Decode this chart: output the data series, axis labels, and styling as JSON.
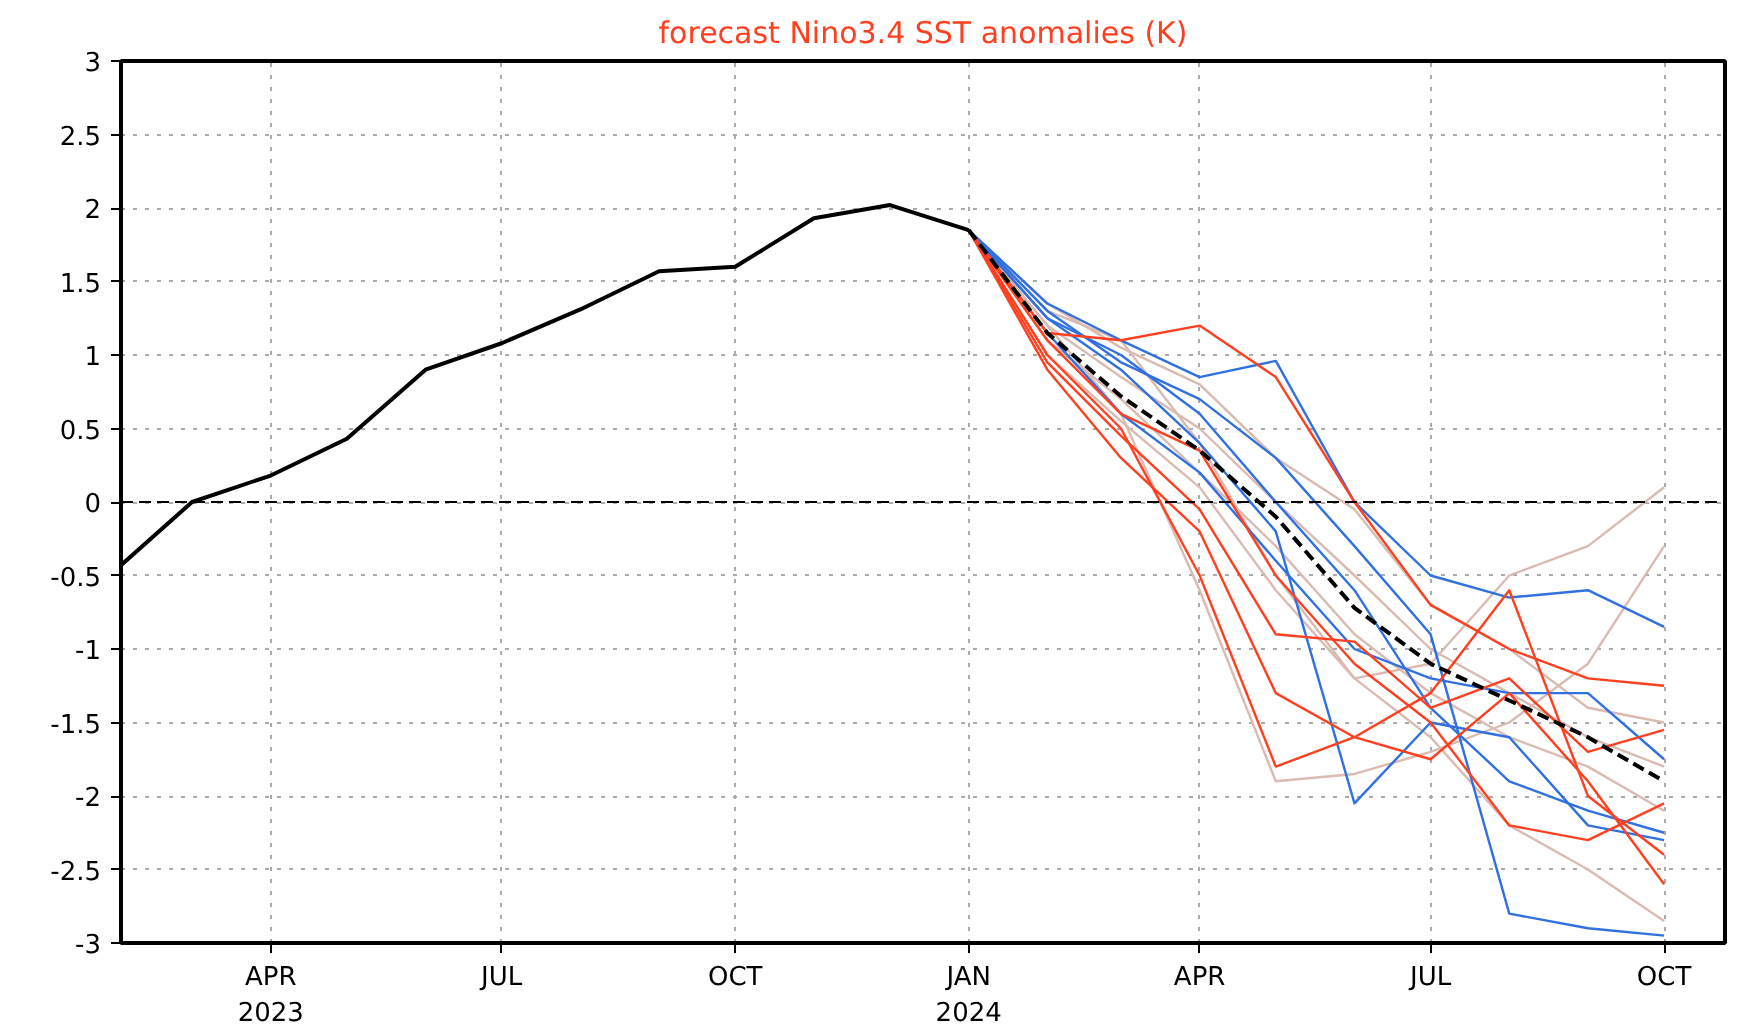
{
  "chart_data": {
    "type": "line",
    "title": "forecast Nino3.4 SST anomalies (K)",
    "xlim": [
      "2023-02-01",
      "2024-10-25"
    ],
    "ylim": [
      -3,
      3
    ],
    "xticks": [
      {
        "value": "2023-04",
        "label": "APR\n2023"
      },
      {
        "value": "2023-07",
        "label": "JUL"
      },
      {
        "value": "2023-10",
        "label": "OCT"
      },
      {
        "value": "2024-01",
        "label": "JAN\n2024"
      },
      {
        "value": "2024-04",
        "label": "APR"
      },
      {
        "value": "2024-07",
        "label": "JUL"
      },
      {
        "value": "2024-10",
        "label": "OCT"
      }
    ],
    "yticks": [
      -3,
      -2.5,
      -2,
      -1.5,
      -1,
      -0.5,
      0,
      0.5,
      1,
      1.5,
      2,
      2.5,
      3
    ],
    "grid": true,
    "marker": "none",
    "ref_lines": [
      {
        "axis": "y",
        "value": 0,
        "color": "#000000",
        "line_style": "dashed"
      }
    ],
    "series": [
      {
        "color": "#d9bbb2",
        "x": [
          "2024-01",
          "2024-02",
          "2024-03",
          "2024-04",
          "2024-05",
          "2024-06",
          "2024-07",
          "2024-08",
          "2024-09",
          "2024-10"
        ],
        "values": [
          1.85,
          1.3,
          1.1,
          0.4,
          -0.5,
          -1.2,
          -1.1,
          -0.5,
          -0.3,
          0.1
        ]
      },
      {
        "color": "#d9bbb2",
        "x": [
          "2024-01",
          "2024-02",
          "2024-03",
          "2024-04",
          "2024-05",
          "2024-06",
          "2024-07",
          "2024-08",
          "2024-09",
          "2024-10"
        ],
        "values": [
          1.85,
          1.2,
          0.6,
          -0.6,
          -1.9,
          -1.85,
          -1.7,
          -1.5,
          -1.1,
          -0.3
        ]
      },
      {
        "color": "#d9bbb2",
        "x": [
          "2024-01",
          "2024-02",
          "2024-03",
          "2024-04",
          "2024-05",
          "2024-06",
          "2024-07",
          "2024-08",
          "2024-09",
          "2024-10"
        ],
        "values": [
          1.85,
          1.35,
          1.05,
          0.8,
          0.3,
          -0.05,
          -0.7,
          -1.0,
          -1.4,
          -1.5
        ]
      },
      {
        "color": "#d9bbb2",
        "x": [
          "2024-01",
          "2024-02",
          "2024-03",
          "2024-04",
          "2024-05",
          "2024-06",
          "2024-07",
          "2024-08",
          "2024-09",
          "2024-10"
        ],
        "values": [
          1.85,
          1.0,
          0.55,
          0.1,
          -0.6,
          -1.2,
          -1.6,
          -2.2,
          -2.5,
          -2.85
        ]
      },
      {
        "color": "#d9bbb2",
        "x": [
          "2024-01",
          "2024-02",
          "2024-03",
          "2024-04",
          "2024-05",
          "2024-06",
          "2024-07",
          "2024-08",
          "2024-09",
          "2024-10"
        ],
        "values": [
          1.85,
          1.1,
          0.7,
          0.2,
          -0.3,
          -0.9,
          -1.3,
          -1.6,
          -1.8,
          -2.1
        ]
      },
      {
        "color": "#d9bbb2",
        "x": [
          "2024-01",
          "2024-02",
          "2024-03",
          "2024-04",
          "2024-05",
          "2024-06",
          "2024-07",
          "2024-08",
          "2024-09",
          "2024-10"
        ],
        "values": [
          1.85,
          1.2,
          0.85,
          0.5,
          0.0,
          -0.5,
          -1.0,
          -1.3,
          -1.6,
          -1.8
        ]
      },
      {
        "color": "#3070e0",
        "x": [
          "2024-01",
          "2024-02",
          "2024-03",
          "2024-04",
          "2024-05",
          "2024-06",
          "2024-07",
          "2024-08",
          "2024-09",
          "2024-10"
        ],
        "values": [
          1.85,
          1.35,
          1.1,
          0.85,
          0.96,
          0.0,
          -0.5,
          -0.65,
          -0.6,
          -0.85
        ]
      },
      {
        "color": "#3070e0",
        "x": [
          "2024-01",
          "2024-02",
          "2024-03",
          "2024-04",
          "2024-05",
          "2024-06",
          "2024-07",
          "2024-08",
          "2024-09",
          "2024-10"
        ],
        "values": [
          1.85,
          1.25,
          0.9,
          0.4,
          -0.2,
          -2.05,
          -1.5,
          -1.6,
          -2.2,
          -2.3
        ]
      },
      {
        "color": "#3070e0",
        "x": [
          "2024-01",
          "2024-02",
          "2024-03",
          "2024-04",
          "2024-05",
          "2024-06",
          "2024-07",
          "2024-08",
          "2024-09",
          "2024-10"
        ],
        "values": [
          1.85,
          1.3,
          0.95,
          0.7,
          0.3,
          -0.3,
          -0.9,
          -2.8,
          -2.9,
          -2.95
        ]
      },
      {
        "color": "#3070e0",
        "x": [
          "2024-01",
          "2024-02",
          "2024-03",
          "2024-04",
          "2024-05",
          "2024-06",
          "2024-07",
          "2024-08",
          "2024-09",
          "2024-10"
        ],
        "values": [
          1.85,
          1.15,
          0.6,
          0.2,
          -0.4,
          -1.0,
          -1.2,
          -1.3,
          -1.3,
          -1.75
        ]
      },
      {
        "color": "#3070e0",
        "x": [
          "2024-01",
          "2024-02",
          "2024-03",
          "2024-04",
          "2024-05",
          "2024-06",
          "2024-07",
          "2024-08",
          "2024-09",
          "2024-10"
        ],
        "values": [
          1.85,
          1.25,
          1.0,
          0.6,
          0.0,
          -0.6,
          -1.4,
          -1.9,
          -2.1,
          -2.25
        ]
      },
      {
        "color": "#ff4020",
        "x": [
          "2024-01",
          "2024-02",
          "2024-03",
          "2024-04",
          "2024-05",
          "2024-06",
          "2024-07",
          "2024-08",
          "2024-09",
          "2024-10"
        ],
        "values": [
          1.85,
          1.15,
          1.1,
          1.2,
          0.85,
          0.0,
          -0.7,
          -1.0,
          -1.2,
          -1.25
        ]
      },
      {
        "color": "#ff4020",
        "x": [
          "2024-01",
          "2024-02",
          "2024-03",
          "2024-04",
          "2024-05",
          "2024-06",
          "2024-07",
          "2024-08",
          "2024-09",
          "2024-10"
        ],
        "values": [
          1.85,
          0.9,
          0.3,
          -0.2,
          -1.3,
          -1.6,
          -1.75,
          -1.3,
          -1.9,
          -2.6
        ]
      },
      {
        "color": "#ff4020",
        "x": [
          "2024-01",
          "2024-02",
          "2024-03",
          "2024-04",
          "2024-05",
          "2024-06",
          "2024-07",
          "2024-08",
          "2024-09",
          "2024-10"
        ],
        "values": [
          1.85,
          1.0,
          0.5,
          -0.5,
          -1.8,
          -1.6,
          -1.3,
          -0.6,
          -2.0,
          -2.4
        ]
      },
      {
        "color": "#ff4020",
        "x": [
          "2024-01",
          "2024-02",
          "2024-03",
          "2024-04",
          "2024-05",
          "2024-06",
          "2024-07",
          "2024-08",
          "2024-09",
          "2024-10"
        ],
        "values": [
          1.85,
          1.1,
          0.6,
          0.35,
          -0.5,
          -1.1,
          -1.5,
          -2.2,
          -2.3,
          -2.05
        ]
      },
      {
        "color": "#ff4020",
        "x": [
          "2024-01",
          "2024-02",
          "2024-03",
          "2024-04",
          "2024-05",
          "2024-06",
          "2024-07",
          "2024-08",
          "2024-09",
          "2024-10"
        ],
        "values": [
          1.85,
          0.95,
          0.45,
          -0.05,
          -0.9,
          -0.95,
          -1.4,
          -1.2,
          -1.7,
          -1.55
        ]
      },
      {
        "color": "#000000",
        "line_style": "dashed",
        "x": [
          "2024-01",
          "2024-02",
          "2024-03",
          "2024-04",
          "2024-05",
          "2024-06",
          "2024-07",
          "2024-08",
          "2024-09",
          "2024-10"
        ],
        "values": [
          1.85,
          1.15,
          0.72,
          0.35,
          -0.1,
          -0.72,
          -1.1,
          -1.35,
          -1.6,
          -1.9
        ]
      },
      {
        "color": "#000000",
        "x": [
          "2023-02",
          "2023-03",
          "2023-04",
          "2023-05",
          "2023-06",
          "2023-07",
          "2023-08",
          "2023-09",
          "2023-10",
          "2023-11",
          "2023-12",
          "2024-01"
        ],
        "values": [
          -0.43,
          0.0,
          0.18,
          0.43,
          0.9,
          1.08,
          1.31,
          1.57,
          1.6,
          1.93,
          2.02,
          1.85
        ]
      }
    ]
  }
}
